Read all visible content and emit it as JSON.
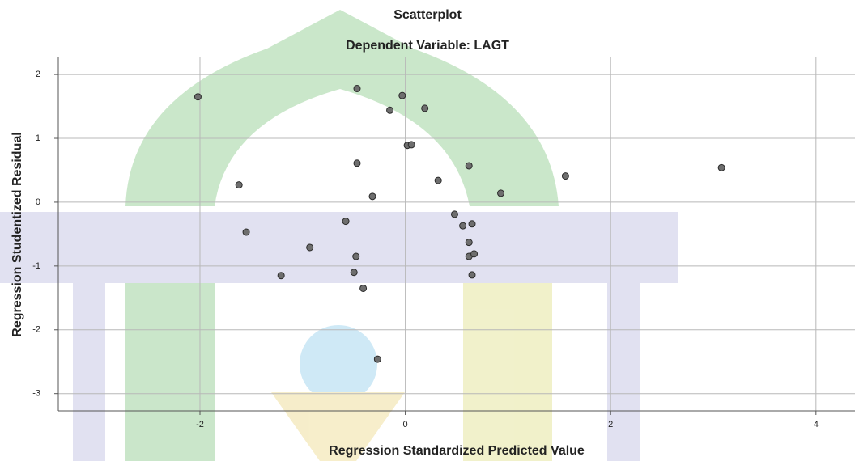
{
  "chart_data": {
    "type": "scatter",
    "title": "Scatterplot",
    "subtitle": "Dependent Variable: LAGT",
    "x_label": "Regression Standardized Predicted Value",
    "y_label": "Regression Studentized Residual",
    "x": [
      -2.02,
      -0.47,
      -0.03,
      -0.15,
      0.19,
      0.02,
      0.06,
      -1.62,
      -0.47,
      -0.32,
      0.32,
      0.62,
      0.93,
      1.56,
      3.08,
      -1.55,
      -0.58,
      -0.93,
      -0.48,
      -1.21,
      -0.5,
      -0.41,
      -0.27,
      0.48,
      0.56,
      0.65,
      0.62,
      0.62,
      0.67,
      0.65
    ],
    "values": [
      1.65,
      1.78,
      1.67,
      1.44,
      1.47,
      0.89,
      0.9,
      0.27,
      0.61,
      0.09,
      0.34,
      0.57,
      0.14,
      0.41,
      0.54,
      -0.47,
      -0.3,
      -0.71,
      -0.85,
      -1.15,
      -1.1,
      -1.35,
      -2.46,
      -0.19,
      -0.37,
      -0.34,
      -0.63,
      -0.85,
      -0.81,
      -1.14
    ],
    "color": "#6e6e6e",
    "xlim": [
      -3.38,
      4.38
    ],
    "xticks": [
      -2,
      0,
      2,
      4
    ],
    "ylim": [
      -3.27,
      2.28
    ],
    "yticks": [
      -3,
      -2,
      -1,
      0,
      1,
      2
    ],
    "grid": true
  }
}
